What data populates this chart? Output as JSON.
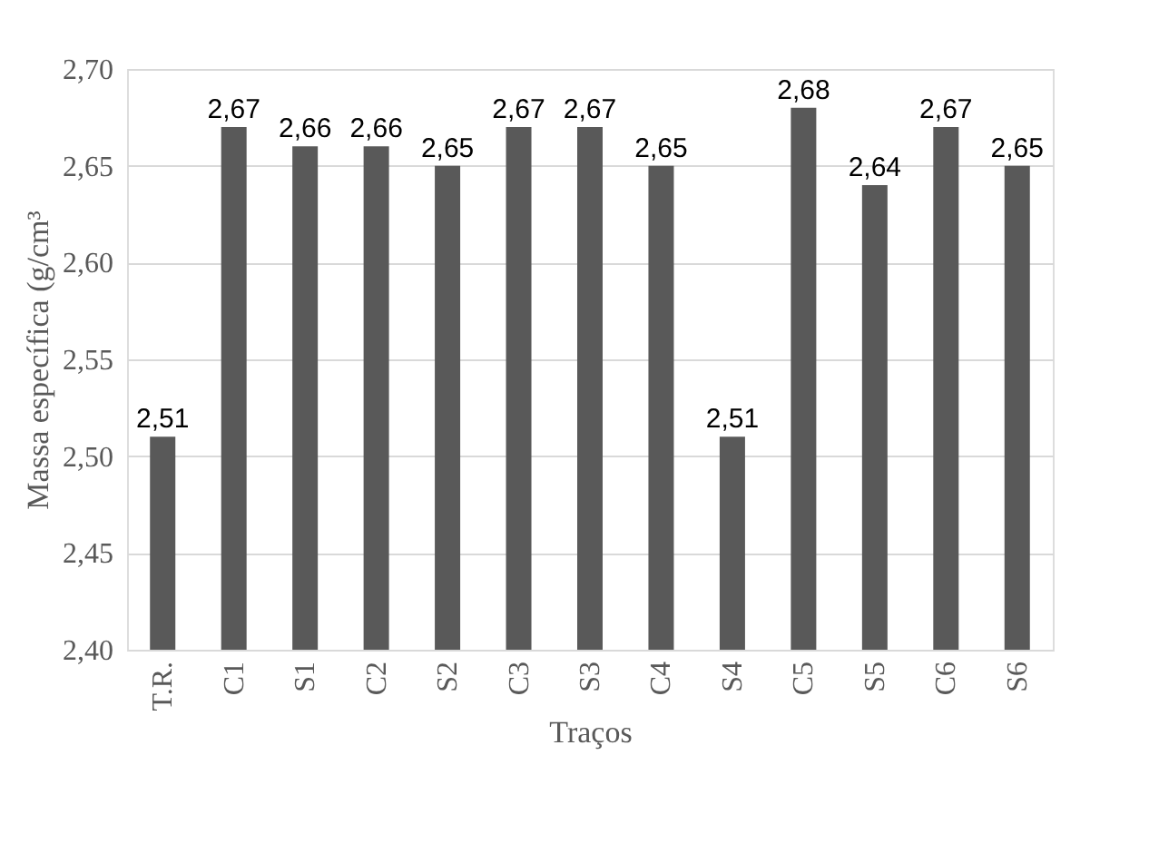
{
  "chart_data": {
    "type": "bar",
    "xlabel": "Traços",
    "ylabel": "Massa específica (g/cm³",
    "categories": [
      "T.R.",
      "C1",
      "S1",
      "C2",
      "S2",
      "C3",
      "S3",
      "C4",
      "S4",
      "C5",
      "S5",
      "C6",
      "S6"
    ],
    "values": [
      2.51,
      2.67,
      2.66,
      2.66,
      2.65,
      2.67,
      2.67,
      2.65,
      2.51,
      2.68,
      2.64,
      2.67,
      2.65
    ],
    "value_labels": [
      "2,51",
      "2,67",
      "2,66",
      "2,66",
      "2,65",
      "2,67",
      "2,67",
      "2,65",
      "2,51",
      "2,68",
      "2,64",
      "2,67",
      "2,65"
    ],
    "color": "#595959",
    "ylim": [
      2.4,
      2.7
    ],
    "yticks": [
      {
        "value": 2.4,
        "label": "2,40"
      },
      {
        "value": 2.45,
        "label": "2,45"
      },
      {
        "value": 2.5,
        "label": "2,50"
      },
      {
        "value": 2.55,
        "label": "2,55"
      },
      {
        "value": 2.6,
        "label": "2,60"
      },
      {
        "value": 2.65,
        "label": "2,65"
      },
      {
        "value": 2.7,
        "label": "2,70"
      }
    ],
    "grid": "y"
  }
}
